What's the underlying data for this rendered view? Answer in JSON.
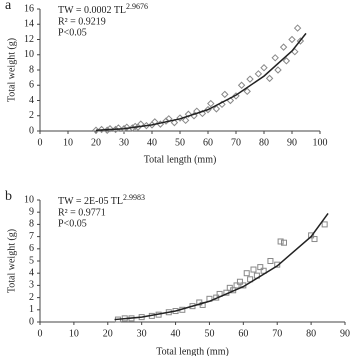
{
  "chart_data": [
    {
      "type": "scatter",
      "panel_label": "a",
      "equation": "TW = 0.0002 TL",
      "equation_exponent": "2.9676",
      "r2": "R² = 0.9219",
      "p": "P<0.05",
      "x_label": "Total length (mm)",
      "y_label": "Total weight (g)",
      "xlim": [
        0,
        100
      ],
      "xticks": [
        0,
        10,
        20,
        30,
        40,
        50,
        60,
        70,
        80,
        90,
        100
      ],
      "ylim": [
        0,
        16
      ],
      "yticks": [
        0,
        2,
        4,
        6,
        8,
        10,
        12,
        14,
        16
      ],
      "series": [
        {
          "mode": "markers",
          "marker": "diamond",
          "color": "#888888",
          "x": [
            20,
            22,
            24,
            25,
            27,
            28,
            30,
            31,
            33,
            34,
            35,
            36,
            38,
            40,
            41,
            43,
            45,
            46,
            48,
            50,
            52,
            53,
            55,
            56,
            58,
            60,
            61,
            63,
            65,
            66,
            68,
            70,
            72,
            74,
            75,
            78,
            80,
            82,
            84,
            85,
            87,
            88,
            90,
            91,
            92,
            93
          ],
          "values": [
            0.1,
            0.2,
            0.1,
            0.3,
            0.2,
            0.4,
            0.3,
            0.5,
            0.4,
            0.6,
            0.5,
            0.9,
            0.7,
            0.8,
            1.2,
            0.9,
            1.3,
            1.6,
            1.1,
            1.7,
            1.4,
            2.2,
            2.0,
            2.6,
            2.3,
            2.8,
            3.6,
            2.9,
            3.5,
            4.8,
            4.0,
            4.6,
            6.0,
            5.2,
            6.8,
            7.5,
            8.3,
            6.9,
            9.6,
            8.0,
            11.0,
            9.2,
            12.0,
            10.4,
            13.5,
            11.8
          ]
        },
        {
          "mode": "line",
          "color": "#222222",
          "x": [
            20,
            30,
            40,
            50,
            60,
            70,
            80,
            90,
            95
          ],
          "values": [
            0.1,
            0.3,
            0.8,
            1.6,
            2.8,
            4.7,
            7.2,
            10.5,
            12.8
          ]
        }
      ]
    },
    {
      "type": "scatter",
      "panel_label": "b",
      "equation": "TW = 2E-05 TL",
      "equation_exponent": "2.9983",
      "r2": "R² = 0.9771",
      "p": "P<0.05",
      "x_label": "Total length (mm)",
      "y_label": "Total weight (g)",
      "xlim": [
        0,
        90
      ],
      "xticks": [
        0,
        10,
        20,
        30,
        40,
        50,
        60,
        70,
        80,
        90
      ],
      "ylim": [
        0,
        10
      ],
      "yticks": [
        0,
        1,
        2,
        3,
        4,
        5,
        6,
        7,
        8,
        9,
        10
      ],
      "series": [
        {
          "mode": "markers",
          "marker": "square",
          "color": "#888888",
          "x": [
            23,
            25,
            27,
            30,
            33,
            35,
            38,
            40,
            42,
            45,
            47,
            48,
            50,
            52,
            53,
            55,
            56,
            57,
            58,
            59,
            60,
            61,
            62,
            63,
            64,
            65,
            66,
            68,
            70,
            71,
            72,
            80,
            81,
            84
          ],
          "values": [
            0.2,
            0.3,
            0.3,
            0.4,
            0.5,
            0.6,
            0.8,
            0.9,
            1.0,
            1.3,
            1.6,
            1.4,
            1.9,
            2.0,
            2.3,
            2.4,
            2.8,
            2.6,
            3.0,
            3.3,
            3.0,
            4.0,
            3.5,
            4.3,
            3.8,
            4.5,
            4.2,
            5.0,
            4.7,
            6.6,
            6.5,
            7.1,
            6.8,
            8.0
          ]
        },
        {
          "mode": "line",
          "color": "#222222",
          "x": [
            22,
            30,
            40,
            50,
            60,
            70,
            80,
            85
          ],
          "values": [
            0.2,
            0.4,
            0.9,
            1.7,
            2.9,
            4.6,
            7.0,
            8.9
          ]
        }
      ]
    }
  ]
}
